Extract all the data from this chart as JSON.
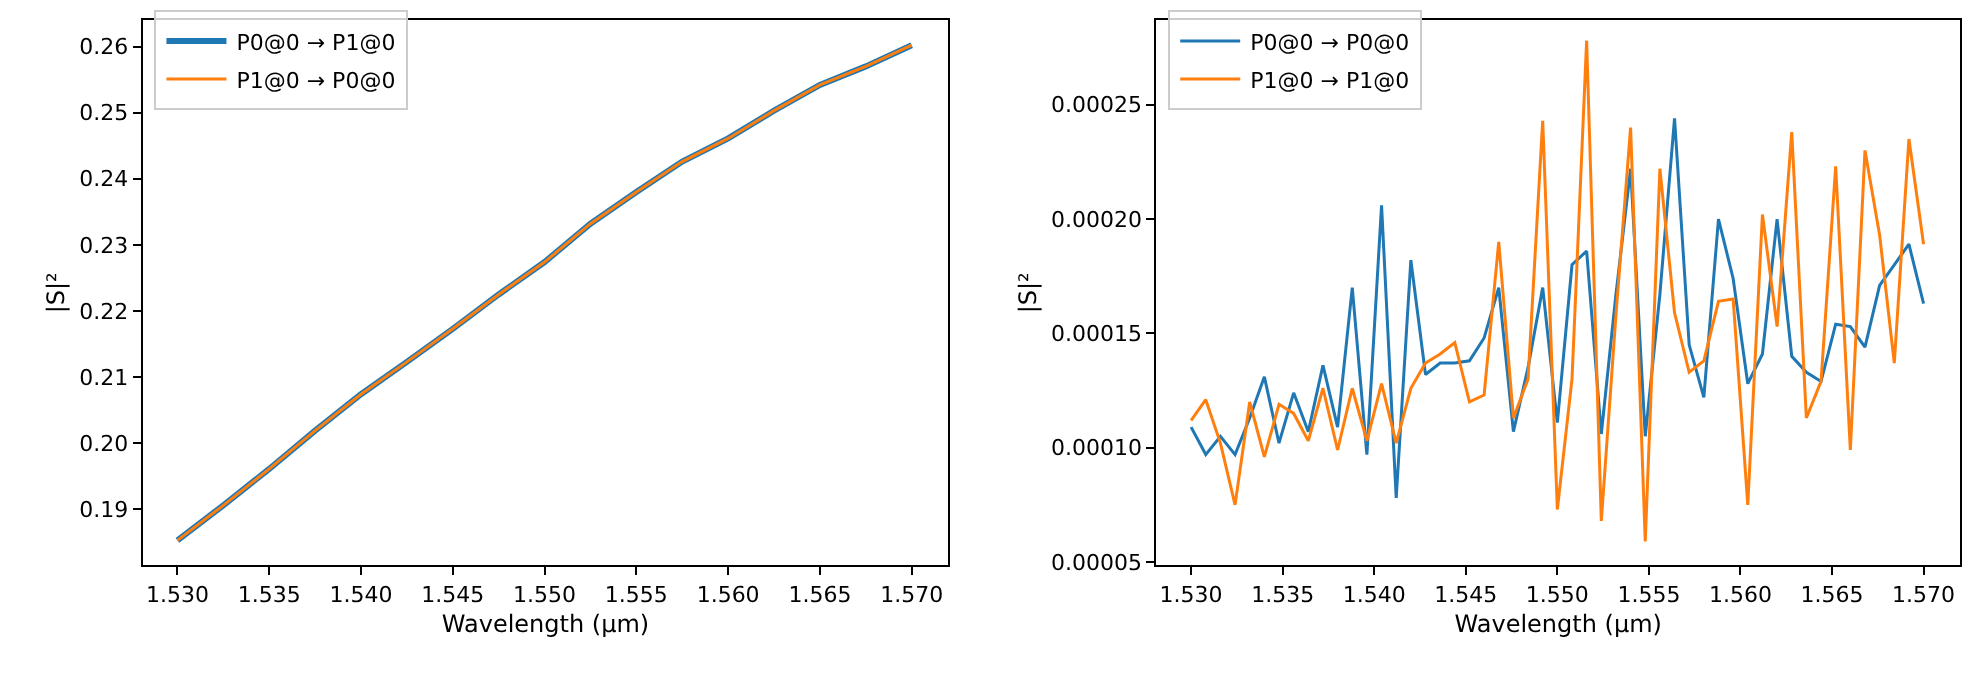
{
  "chart_data": [
    {
      "type": "line",
      "xlabel": "Wavelength (μm)",
      "ylabel": "|S|²",
      "legend": "top left",
      "grid": false,
      "x": [
        1.53,
        1.5325,
        1.535,
        1.5375,
        1.54,
        1.5425,
        1.545,
        1.5475,
        1.55,
        1.5525,
        1.555,
        1.5575,
        1.56,
        1.5625,
        1.565,
        1.5675,
        1.57
      ],
      "series": [
        {
          "name": "P0@0 → P1@0",
          "color": "#1f77b4",
          "values": [
            0.1853,
            0.1906,
            0.1961,
            0.2019,
            0.2074,
            0.2123,
            0.2173,
            0.2225,
            0.2274,
            0.2332,
            0.238,
            0.2426,
            0.2461,
            0.2503,
            0.2542,
            0.257,
            0.2602
          ]
        },
        {
          "name": "P1@0 → P0@0",
          "color": "#ff7f0e",
          "values": [
            0.1853,
            0.1906,
            0.1961,
            0.2019,
            0.2074,
            0.2123,
            0.2173,
            0.2225,
            0.2274,
            0.2332,
            0.238,
            0.2426,
            0.2461,
            0.2503,
            0.2542,
            0.257,
            0.2602
          ]
        }
      ],
      "xlim": [
        1.5281,
        1.572
      ],
      "xticks": [
        {
          "value": 1.53,
          "label": "1.530"
        },
        {
          "value": 1.535,
          "label": "1.535"
        },
        {
          "value": 1.54,
          "label": "1.540"
        },
        {
          "value": 1.545,
          "label": "1.545"
        },
        {
          "value": 1.55,
          "label": "1.550"
        },
        {
          "value": 1.555,
          "label": "1.555"
        },
        {
          "value": 1.56,
          "label": "1.560"
        },
        {
          "value": 1.565,
          "label": "1.565"
        },
        {
          "value": 1.57,
          "label": "1.570"
        }
      ],
      "ylim": [
        0.1815,
        0.264
      ],
      "yticks": [
        0.19,
        {
          "value": 0.2,
          "label": "0.20"
        },
        0.21,
        0.22,
        0.23,
        0.24,
        0.25,
        0.26
      ]
    },
    {
      "type": "line",
      "xlabel": "Wavelength (μm)",
      "ylabel": "|S|²",
      "legend": "top left",
      "grid": false,
      "x": [
        1.53,
        1.5308,
        1.5316,
        1.5324,
        1.5332,
        1.534,
        1.5348,
        1.5356,
        1.5364,
        1.5372,
        1.538,
        1.5388,
        1.5396,
        1.5404,
        1.5412,
        1.542,
        1.5428,
        1.5436,
        1.5444,
        1.5452,
        1.546,
        1.5468,
        1.5476,
        1.5484,
        1.5492,
        1.55,
        1.5508,
        1.5516,
        1.5524,
        1.5532,
        1.554,
        1.5548,
        1.5556,
        1.5564,
        1.5572,
        1.558,
        1.5588,
        1.5596,
        1.5604,
        1.5612,
        1.562,
        1.5628,
        1.5636,
        1.5644,
        1.5652,
        1.566,
        1.5668,
        1.5676,
        1.5684,
        1.5692,
        1.57
      ],
      "series": [
        {
          "name": "P0@0 → P0@0",
          "color": "#1f77b4",
          "values": [
            0.000109,
            9.7e-05,
            0.000105,
            9.7e-05,
            0.000113,
            0.000131,
            0.000102,
            0.000124,
            0.000107,
            0.000136,
            0.000109,
            0.00017,
            9.7e-05,
            0.000206,
            7.8e-05,
            0.000182,
            0.000132,
            0.000137,
            0.000137,
            0.000138,
            0.000148,
            0.00017,
            0.000107,
            0.000135,
            0.00017,
            0.000111,
            0.00018,
            0.000186,
            0.000106,
            0.000167,
            0.000222,
            0.000105,
            0.000167,
            0.000244,
            0.000145,
            0.000122,
            0.0002,
            0.000174,
            0.000128,
            0.000141,
            0.0002,
            0.00014,
            0.000133,
            0.000129,
            0.000154,
            0.000153,
            0.000144,
            0.000171,
            0.00018,
            0.000189,
            0.000163
          ]
        },
        {
          "name": "P1@0 → P1@0",
          "color": "#ff7f0e",
          "values": [
            0.000112,
            0.000121,
            0.000102,
            7.5e-05,
            0.00012,
            9.6e-05,
            0.000119,
            0.000115,
            0.000103,
            0.000126,
            9.9e-05,
            0.000126,
            0.000103,
            0.000128,
            0.000102,
            0.000126,
            0.000137,
            0.000141,
            0.000146,
            0.00012,
            0.000123,
            0.00019,
            0.000113,
            0.00013,
            0.000243,
            7.3e-05,
            0.00013,
            0.000278,
            6.8e-05,
            0.000158,
            0.00024,
            5.9e-05,
            0.000222,
            0.000159,
            0.000133,
            0.000138,
            0.000164,
            0.000165,
            7.5e-05,
            0.000202,
            0.000153,
            0.000238,
            0.000113,
            0.000129,
            0.000223,
            9.9e-05,
            0.00023,
            0.000193,
            0.000137,
            0.000235,
            0.000189
          ]
        }
      ],
      "xlim": [
        1.5281,
        1.572
      ],
      "xticks": [
        {
          "value": 1.53,
          "label": "1.530"
        },
        {
          "value": 1.535,
          "label": "1.535"
        },
        {
          "value": 1.54,
          "label": "1.540"
        },
        {
          "value": 1.545,
          "label": "1.545"
        },
        {
          "value": 1.55,
          "label": "1.550"
        },
        {
          "value": 1.555,
          "label": "1.555"
        },
        {
          "value": 1.56,
          "label": "1.560"
        },
        {
          "value": 1.565,
          "label": "1.565"
        },
        {
          "value": 1.57,
          "label": "1.570"
        }
      ],
      "ylim": [
        4.85e-05,
        0.000287
      ],
      "yticks": [
        {
          "value": 5e-05,
          "label": "0.00005"
        },
        {
          "value": 0.0001,
          "label": "0.00010"
        },
        {
          "value": 0.00015,
          "label": "0.00015"
        },
        {
          "value": 0.0002,
          "label": "0.00020"
        },
        {
          "value": 0.00025,
          "label": "0.00025"
        }
      ]
    }
  ]
}
